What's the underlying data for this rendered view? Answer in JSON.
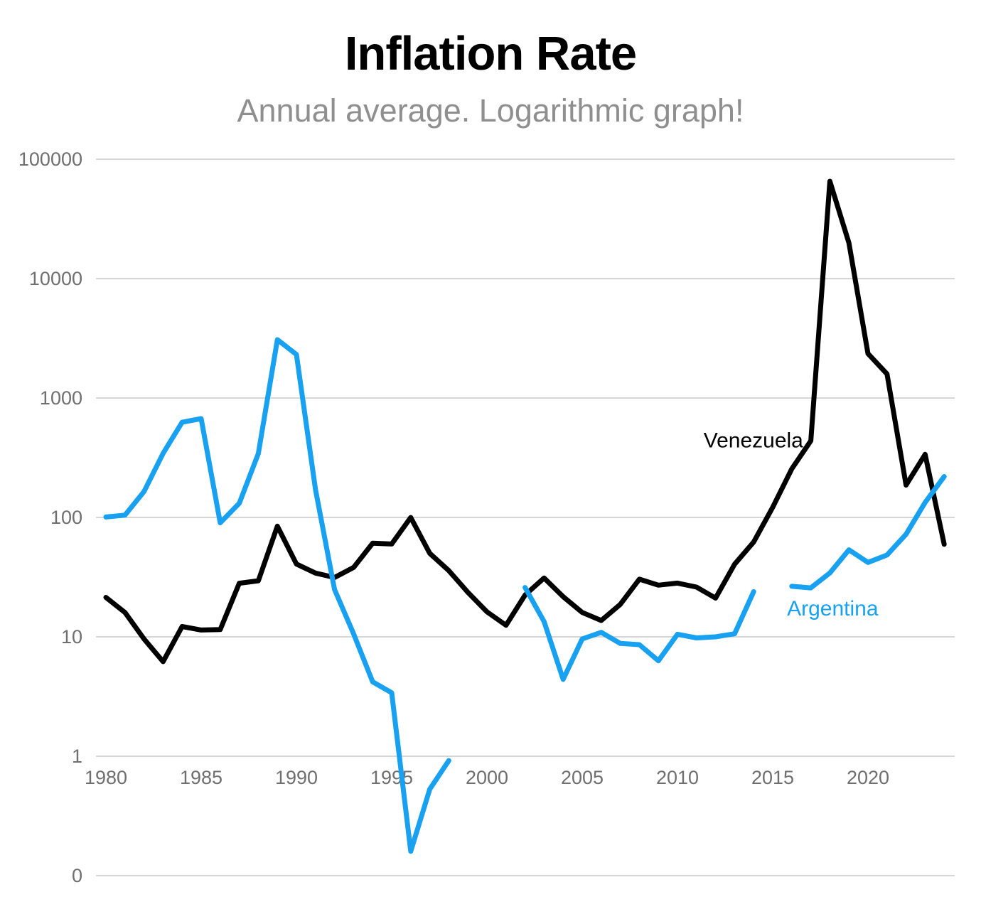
{
  "page": {
    "title": "Inflation Rate",
    "subtitle": "Annual average. Logarithmic graph!"
  },
  "chart_data": {
    "type": "line",
    "title": "Inflation Rate",
    "subtitle": "Annual average. Logarithmic graph!",
    "y_scale": "log10",
    "grid": true,
    "x_range": [
      1980,
      2024
    ],
    "ylim": [
      1,
      100000
    ],
    "x_ticks": [
      1980,
      1985,
      1990,
      1995,
      2000,
      2005,
      2010,
      2015,
      2020
    ],
    "y_ticks": [
      {
        "label": "100000",
        "value": 100000
      },
      {
        "label": "10000",
        "value": 10000
      },
      {
        "label": "1000",
        "value": 1000
      },
      {
        "label": "100",
        "value": 100
      },
      {
        "label": "10",
        "value": 10
      },
      {
        "label": "1",
        "value": 1
      },
      {
        "label": "0",
        "value": 0
      }
    ],
    "colors": {
      "venezuela": "#000000",
      "argentina": "#18A1F1"
    },
    "series": [
      {
        "name": "Venezuela",
        "color": "#000000",
        "segments": [
          [
            [
              1980,
              21.4
            ],
            [
              1981,
              16.0
            ],
            [
              1982,
              9.6
            ],
            [
              1983,
              6.2
            ],
            [
              1984,
              12.2
            ],
            [
              1985,
              11.4
            ],
            [
              1986,
              11.5
            ],
            [
              1987,
              28.1
            ],
            [
              1988,
              29.5
            ],
            [
              1989,
              84.5
            ],
            [
              1990,
              40.7
            ],
            [
              1991,
              34.2
            ],
            [
              1992,
              31.4
            ],
            [
              1993,
              38.1
            ],
            [
              1994,
              60.8
            ],
            [
              1995,
              59.9
            ],
            [
              1996,
              99.9
            ],
            [
              1997,
              50.0
            ],
            [
              1998,
              35.8
            ],
            [
              1999,
              23.6
            ],
            [
              2000,
              16.2
            ],
            [
              2001,
              12.5
            ],
            [
              2002,
              22.4
            ],
            [
              2003,
              31.1
            ],
            [
              2004,
              21.7
            ],
            [
              2005,
              16.0
            ],
            [
              2006,
              13.7
            ],
            [
              2007,
              18.7
            ],
            [
              2008,
              30.4
            ],
            [
              2009,
              27.1
            ],
            [
              2010,
              28.2
            ],
            [
              2011,
              26.1
            ],
            [
              2012,
              21.1
            ],
            [
              2013,
              40.6
            ],
            [
              2014,
              62.2
            ],
            [
              2015,
              121.7
            ],
            [
              2016,
              254.9
            ],
            [
              2017,
              438.1
            ],
            [
              2018,
              65374.1
            ],
            [
              2019,
              19906.0
            ],
            [
              2020,
              2355.1
            ],
            [
              2021,
              1588.5
            ],
            [
              2022,
              186.5
            ],
            [
              2023,
              337.5
            ],
            [
              2024,
              59.6
            ]
          ]
        ]
      },
      {
        "name": "Argentina",
        "color": "#18A1F1",
        "segments": [
          [
            [
              1980,
              100.8
            ],
            [
              1981,
              104.5
            ],
            [
              1982,
              164.8
            ],
            [
              1983,
              343.8
            ],
            [
              1984,
              626.7
            ],
            [
              1985,
              672.1
            ],
            [
              1986,
              90.1
            ],
            [
              1987,
              131.3
            ],
            [
              1988,
              343.0
            ],
            [
              1989,
              3079.5
            ],
            [
              1990,
              2314.0
            ],
            [
              1991,
              171.7
            ],
            [
              1992,
              24.9
            ],
            [
              1993,
              10.6
            ],
            [
              1994,
              4.2
            ],
            [
              1995,
              3.4
            ],
            [
              1996,
              0.16
            ],
            [
              1997,
              0.53
            ],
            [
              1998,
              0.92
            ]
          ],
          [
            [
              2002,
              25.9
            ],
            [
              2003,
              13.4
            ],
            [
              2004,
              4.4
            ],
            [
              2005,
              9.6
            ],
            [
              2006,
              10.9
            ],
            [
              2007,
              8.8
            ],
            [
              2008,
              8.6
            ],
            [
              2009,
              6.3
            ],
            [
              2010,
              10.5
            ],
            [
              2011,
              9.8
            ],
            [
              2012,
              10.0
            ],
            [
              2013,
              10.6
            ],
            [
              2014,
              23.9
            ]
          ],
          [
            [
              2016,
              26.5
            ],
            [
              2017,
              25.7
            ],
            [
              2018,
              34.3
            ],
            [
              2019,
              53.5
            ],
            [
              2020,
              42.0
            ],
            [
              2021,
              48.4
            ],
            [
              2022,
              72.4
            ],
            [
              2023,
              133.5
            ],
            [
              2024,
              219.9
            ]
          ]
        ]
      }
    ],
    "annotations": [
      {
        "text": "Venezuela",
        "color": "#000000",
        "year": 2016.6,
        "value": 440,
        "anchor": "end"
      },
      {
        "text": "Argentina",
        "color": "#18A1F1",
        "year": 2015.75,
        "value": 17.2,
        "anchor": "start"
      }
    ]
  }
}
